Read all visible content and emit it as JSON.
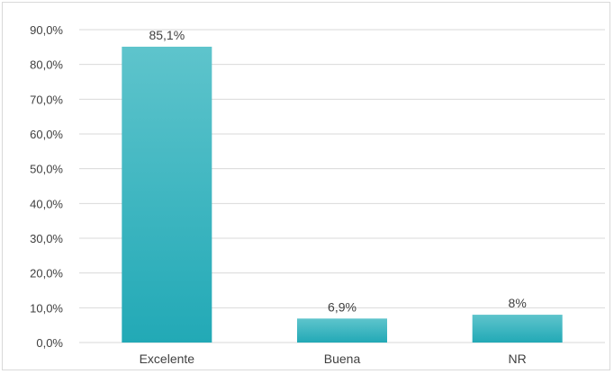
{
  "chart_data": {
    "type": "bar",
    "categories": [
      "Excelente",
      "Buena",
      "NR"
    ],
    "values": [
      85.1,
      6.9,
      8.0
    ],
    "data_labels": [
      "85,1%",
      "6,9%",
      "8%"
    ],
    "y_ticks": [
      "0,0%",
      "10,0%",
      "20,0%",
      "30,0%",
      "40,0%",
      "50,0%",
      "60,0%",
      "70,0%",
      "80,0%",
      "90,0%"
    ],
    "ylim": [
      0,
      90
    ],
    "title": "",
    "xlabel": "",
    "ylabel": "",
    "grid": true,
    "legend": "none",
    "colors": {
      "bar_top": "#5ec4cc",
      "bar_bottom": "#22a9b6",
      "grid": "#d9d9d9",
      "text": "#404040"
    }
  }
}
